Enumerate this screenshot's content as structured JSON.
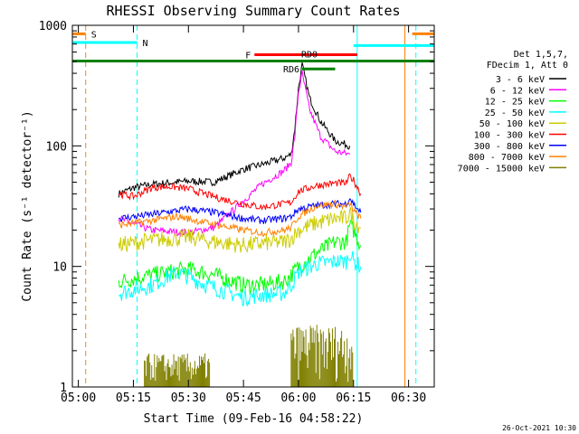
{
  "chart_data": {
    "type": "line",
    "title": "RHESSI Observing Summary Count Rates",
    "xlabel": "Start Time (09-Feb-16 04:58:22)",
    "ylabel": "Count Rate (s⁻¹ detector⁻¹)",
    "y_scale": "log",
    "ylim": [
      1,
      1000
    ],
    "xlim": [
      "04:58:22",
      "06:37:00"
    ],
    "x_ticks": [
      "05:00",
      "05:15",
      "05:30",
      "05:45",
      "06:00",
      "06:15",
      "06:30"
    ],
    "y_ticks": [
      "1",
      "10",
      "100",
      "1000"
    ],
    "timestamp": "26-Oct-2021 10:30",
    "legend_header": [
      "Det 1,5,7,",
      "FDecim 1, Att 0"
    ],
    "series": [
      {
        "name": "3 - 6 keV",
        "color": "#000000",
        "x": [
          "05:11",
          "05:15",
          "05:20",
          "05:30",
          "05:37",
          "05:45",
          "05:50",
          "05:56",
          "05:58",
          "05:59",
          "06:00",
          "06:01",
          "06:03",
          "06:06",
          "06:10",
          "06:14"
        ],
        "y": [
          40,
          45,
          48,
          51,
          50,
          64,
          70,
          79,
          85,
          140,
          300,
          470,
          250,
          160,
          110,
          100
        ]
      },
      {
        "name": "6 - 12 keV",
        "color": "#ff00ff",
        "x": [
          "05:11",
          "05:20",
          "05:30",
          "05:37",
          "05:45",
          "05:50",
          "05:56",
          "05:58",
          "05:59",
          "06:00",
          "06:01",
          "06:03",
          "06:06",
          "06:10",
          "06:14"
        ],
        "y": [
          25,
          20,
          19,
          21,
          35,
          48,
          62,
          73,
          120,
          280,
          400,
          200,
          120,
          90,
          85
        ]
      },
      {
        "name": "12 - 25 keV",
        "color": "#00ff00",
        "x": [
          "05:11",
          "05:20",
          "05:30",
          "05:37",
          "05:45",
          "05:50",
          "05:56",
          "05:58",
          "06:00",
          "06:05",
          "06:10",
          "06:13",
          "06:14",
          "06:15",
          "06:16",
          "06:17"
        ],
        "y": [
          7.5,
          8.5,
          9.5,
          8.5,
          7,
          7,
          7.5,
          8.5,
          10,
          13,
          16,
          16,
          22,
          20,
          17,
          15
        ]
      },
      {
        "name": "25 - 50 keV",
        "color": "#00ffff",
        "x": [
          "05:11",
          "05:20",
          "05:27",
          "05:35",
          "05:45",
          "05:50",
          "05:56",
          "05:58",
          "06:00",
          "06:05",
          "06:10",
          "06:13",
          "06:14",
          "06:15",
          "06:17"
        ],
        "y": [
          6,
          7,
          9,
          7,
          5.5,
          5.8,
          6,
          7,
          9,
          10.5,
          11,
          11,
          13,
          11,
          10
        ]
      },
      {
        "name": "50 - 100 keV",
        "color": "#cccc00",
        "x": [
          "05:11",
          "05:20",
          "05:30",
          "05:37",
          "05:45",
          "05:50",
          "05:56",
          "05:58",
          "06:00",
          "06:05",
          "06:10",
          "06:13",
          "06:14",
          "06:15",
          "06:17"
        ],
        "y": [
          15,
          16.5,
          17.5,
          16,
          15,
          15.5,
          16,
          17,
          20,
          23,
          25,
          25,
          28,
          24,
          21
        ]
      },
      {
        "name": "100 - 300 keV",
        "color": "#ff0000",
        "x": [
          "05:11",
          "05:15",
          "05:20",
          "05:25",
          "05:30",
          "05:38",
          "05:45",
          "05:50",
          "05:56",
          "05:58",
          "06:00",
          "06:05",
          "06:10",
          "06:13",
          "06:14",
          "06:15",
          "06:17"
        ],
        "y": [
          40,
          38,
          45,
          46,
          44,
          37,
          33,
          31,
          33,
          34,
          42,
          47,
          49,
          49,
          56,
          52,
          40
        ]
      },
      {
        "name": "300 - 800 keV",
        "color": "#0000ff",
        "x": [
          "05:11",
          "05:20",
          "05:30",
          "05:37",
          "05:45",
          "05:50",
          "05:56",
          "05:58",
          "06:00",
          "06:05",
          "06:10",
          "06:13",
          "06:14",
          "06:15",
          "06:17"
        ],
        "y": [
          25,
          27,
          30,
          28,
          25,
          24,
          25,
          26,
          30,
          32,
          33,
          33,
          37,
          33,
          28
        ]
      },
      {
        "name": "800 - 7000 keV",
        "color": "#ff8000",
        "x": [
          "05:11",
          "05:20",
          "05:27",
          "05:35",
          "05:45",
          "05:50",
          "05:56",
          "05:58",
          "06:00",
          "06:05",
          "06:10",
          "06:13",
          "06:14",
          "06:15",
          "06:17"
        ],
        "y": [
          22,
          24,
          26,
          23,
          20,
          19,
          20,
          21,
          26,
          32,
          33,
          31,
          33,
          29,
          25
        ]
      },
      {
        "name": "7000 - 15000 keV",
        "color": "#808000",
        "x": [
          "05:18",
          "05:22",
          "05:26",
          "05:30",
          "05:36",
          "05:58",
          "06:00",
          "06:03",
          "06:06",
          "06:09",
          "06:12",
          "06:15"
        ],
        "y": [
          1.5,
          1.6,
          1.6,
          1.5,
          1.5,
          1.6,
          1.9,
          2.3,
          2.6,
          2.5,
          2.4,
          2.3
        ]
      }
    ],
    "annotations": [
      {
        "label": "S",
        "color": "#ff8000",
        "x_start": "04:58:22",
        "x_end": "05:02",
        "y": 850
      },
      {
        "label": "N",
        "color": "#00ffff",
        "x_start": "04:58:22",
        "x_end": "05:16",
        "y": 720
      },
      {
        "label": "F",
        "color": "#ff0000",
        "x_start": "05:48",
        "x_end": "06:16",
        "y": 570
      },
      {
        "label": "RD0",
        "color": "#008000",
        "x_start": "06:00",
        "x_end": "06:09",
        "y": 505
      },
      {
        "label": "",
        "color": "#008000",
        "x_start": "04:58:22",
        "x_end": "06:37:00",
        "y": 505
      },
      {
        "label": "RD6",
        "color": "#008000",
        "x_start": "06:01",
        "x_end": "06:10",
        "y": 435
      }
    ],
    "right_bars": [
      {
        "color": "#00ffff",
        "x_start": "06:15",
        "x_end": "06:37:00",
        "y": 680
      },
      {
        "color": "#ff8000",
        "x_start": "06:31",
        "x_end": "06:37:00",
        "y": 850
      }
    ],
    "vertical_lines": [
      {
        "x": "04:58:22",
        "color": "#00ffff",
        "style": "solid"
      },
      {
        "x": "05:02",
        "color": "#ff8000",
        "style": "dashed"
      },
      {
        "x": "05:16",
        "color": "#00ffff",
        "style": "dashed"
      },
      {
        "x": "06:16",
        "color": "#00ffff",
        "style": "solid"
      },
      {
        "x": "06:29",
        "color": "#ff8000",
        "style": "solid"
      },
      {
        "x": "06:32",
        "color": "#00ffff",
        "style": "dashed"
      }
    ]
  }
}
